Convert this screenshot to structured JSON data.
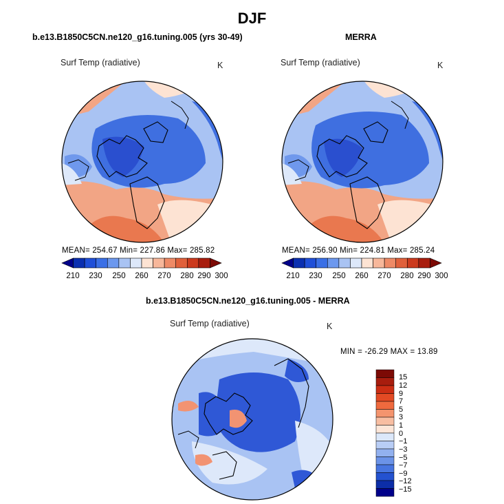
{
  "figure": {
    "title": "DJF"
  },
  "panels": {
    "model": {
      "title": "b.e13.B1850C5CN.ne120_g16.tuning.005 (yrs 30-49)",
      "variable": "Surf Temp (radiative)",
      "units": "K",
      "stats": "MEAN= 254.67   Min= 227.86   Max= 285.82"
    },
    "obs": {
      "title": "MERRA",
      "variable": "Surf Temp (radiative)",
      "units": "K",
      "stats": "MEAN= 256.90   Min= 224.81   Max= 285.24"
    },
    "diff": {
      "title": "b.e13.B1850C5CN.ne120_g16.tuning.005 - MERRA",
      "variable": "Surf Temp (radiative)",
      "units": "K",
      "stats": "MIN = -26.29  MAX =  13.89"
    }
  },
  "colorbar_abs": {
    "labels": [
      "210",
      "230",
      "250",
      "260",
      "270",
      "280",
      "290",
      "300"
    ],
    "colors": [
      "#00008a",
      "#0a2fb0",
      "#1f4fd8",
      "#3a6fe6",
      "#6c98ee",
      "#a9c3f3",
      "#dde8fa",
      "#fde3d3",
      "#f7b79a",
      "#ee8a66",
      "#e0603b",
      "#cc3a1d",
      "#a81d0e",
      "#7c0a05"
    ]
  },
  "colorbar_diff": {
    "labels": [
      "15",
      "12",
      "9",
      "7",
      "5",
      "3",
      "1",
      "0",
      "−1",
      "−3",
      "−5",
      "−7",
      "−9",
      "−12",
      "−15"
    ],
    "colors": [
      "#7c0a05",
      "#a81d0e",
      "#cc2e14",
      "#e34a24",
      "#ef6a3e",
      "#f4946e",
      "#f8bea2",
      "#fde6d8",
      "#dce8fa",
      "#b8cdf5",
      "#92b1ef",
      "#6b93e8",
      "#4775e0",
      "#2452d0",
      "#0c2ea8",
      "#00008a"
    ]
  },
  "map_colors": {
    "cold": "#3f6fe0",
    "deep_cold": "#2a4fcf",
    "mid": "#6f98ec",
    "cool": "#a9c3f3",
    "pale": "#dde8fa",
    "warm_light": "#fde3d3",
    "warm": "#f2a585",
    "warm_strong": "#e9784f",
    "diff_bg": "#a9c3f3",
    "diff_pos": "#f29372",
    "diff_neg": "#2f58d6"
  }
}
